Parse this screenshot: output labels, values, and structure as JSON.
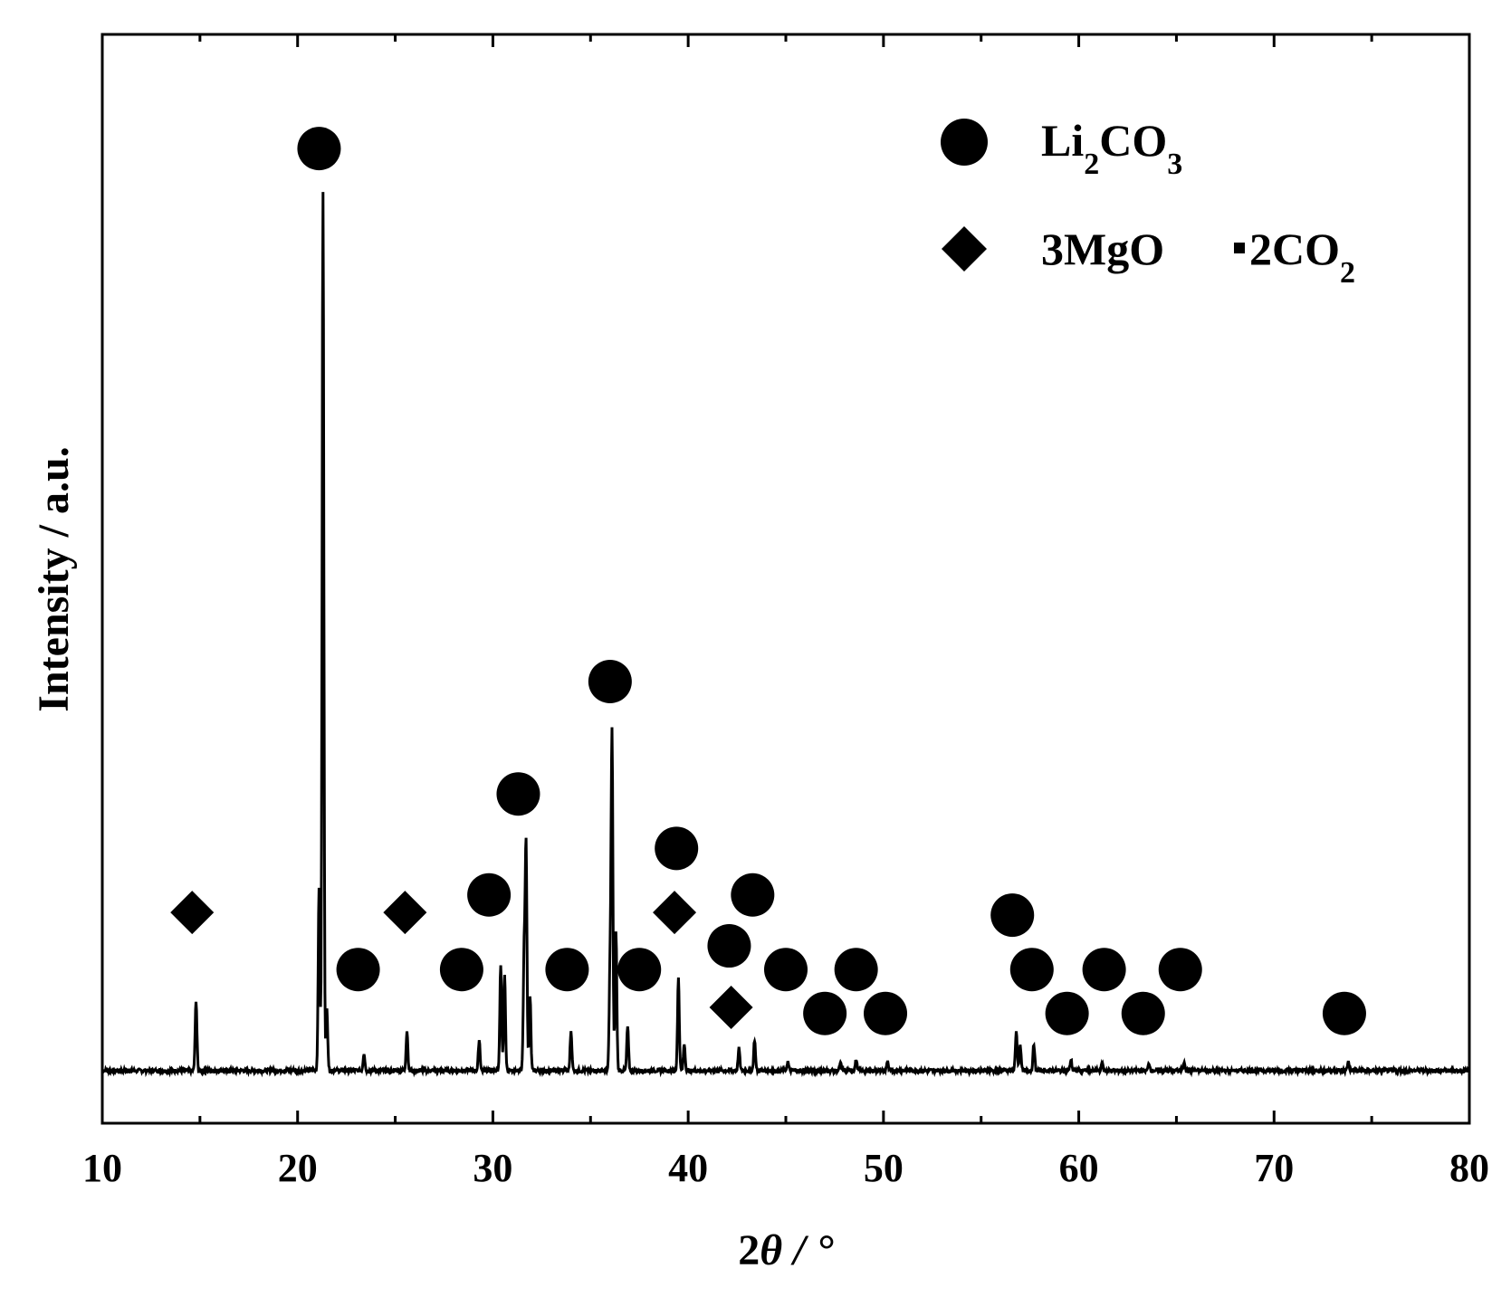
{
  "chart_data": {
    "type": "line",
    "xlabel_prefix": "2",
    "xlabel_theta": "θ",
    "xlabel_suffix": " / °",
    "ylabel": "Intensity / a.u.",
    "xlim": [
      10,
      80
    ],
    "ylim": [
      -0.06,
      1.18
    ],
    "xticks": [
      10,
      20,
      30,
      40,
      50,
      60,
      70,
      80
    ],
    "tick_labels": [
      "10",
      "20",
      "30",
      "40",
      "50",
      "60",
      "70",
      "80"
    ],
    "grid": false,
    "legend_position": "top-right",
    "legend": [
      {
        "marker": "circle",
        "parts": [
          "Li",
          "2",
          "CO",
          "3"
        ]
      },
      {
        "marker": "diamond",
        "parts": [
          "3MgO",
          "2CO",
          "2"
        ]
      }
    ],
    "baseline": 0,
    "peaks": [
      {
        "x": 14.8,
        "y": 0.08
      },
      {
        "x": 21.1,
        "y": 0.21
      },
      {
        "x": 21.3,
        "y": 1.0
      },
      {
        "x": 21.5,
        "y": 0.07
      },
      {
        "x": 23.4,
        "y": 0.02
      },
      {
        "x": 25.6,
        "y": 0.045
      },
      {
        "x": 29.3,
        "y": 0.035
      },
      {
        "x": 30.4,
        "y": 0.12
      },
      {
        "x": 30.6,
        "y": 0.11
      },
      {
        "x": 31.6,
        "y": 0.13
      },
      {
        "x": 31.7,
        "y": 0.255
      },
      {
        "x": 31.9,
        "y": 0.085
      },
      {
        "x": 34.0,
        "y": 0.045
      },
      {
        "x": 36.0,
        "y": 0.115
      },
      {
        "x": 36.1,
        "y": 0.38
      },
      {
        "x": 36.3,
        "y": 0.16
      },
      {
        "x": 36.9,
        "y": 0.05
      },
      {
        "x": 39.5,
        "y": 0.105
      },
      {
        "x": 39.8,
        "y": 0.03
      },
      {
        "x": 42.6,
        "y": 0.025
      },
      {
        "x": 43.4,
        "y": 0.035
      },
      {
        "x": 45.1,
        "y": 0.01
      },
      {
        "x": 47.8,
        "y": 0.008
      },
      {
        "x": 48.6,
        "y": 0.012
      },
      {
        "x": 50.2,
        "y": 0.01
      },
      {
        "x": 56.8,
        "y": 0.045
      },
      {
        "x": 57.0,
        "y": 0.03
      },
      {
        "x": 57.7,
        "y": 0.03
      },
      {
        "x": 59.6,
        "y": 0.012
      },
      {
        "x": 61.2,
        "y": 0.008
      },
      {
        "x": 63.6,
        "y": 0.008
      },
      {
        "x": 65.4,
        "y": 0.01
      },
      {
        "x": 73.8,
        "y": 0.01
      }
    ],
    "markers": [
      {
        "shape": "circle",
        "x": 21.1,
        "y": 1.05
      },
      {
        "shape": "circle",
        "x": 36.0,
        "y": 0.443
      },
      {
        "shape": "circle",
        "x": 31.3,
        "y": 0.315
      },
      {
        "shape": "circle",
        "x": 39.4,
        "y": 0.253
      },
      {
        "shape": "circle",
        "x": 29.8,
        "y": 0.2
      },
      {
        "shape": "circle",
        "x": 43.3,
        "y": 0.2
      },
      {
        "shape": "circle",
        "x": 56.6,
        "y": 0.177
      },
      {
        "shape": "circle",
        "x": 42.1,
        "y": 0.142
      },
      {
        "shape": "circle",
        "x": 23.1,
        "y": 0.115
      },
      {
        "shape": "circle",
        "x": 28.4,
        "y": 0.115
      },
      {
        "shape": "circle",
        "x": 33.8,
        "y": 0.115
      },
      {
        "shape": "circle",
        "x": 37.5,
        "y": 0.115
      },
      {
        "shape": "circle",
        "x": 45.0,
        "y": 0.115
      },
      {
        "shape": "circle",
        "x": 48.6,
        "y": 0.115
      },
      {
        "shape": "circle",
        "x": 57.6,
        "y": 0.115
      },
      {
        "shape": "circle",
        "x": 61.3,
        "y": 0.115
      },
      {
        "shape": "circle",
        "x": 65.2,
        "y": 0.115
      },
      {
        "shape": "circle",
        "x": 47.0,
        "y": 0.065
      },
      {
        "shape": "circle",
        "x": 50.1,
        "y": 0.065
      },
      {
        "shape": "circle",
        "x": 59.4,
        "y": 0.065
      },
      {
        "shape": "circle",
        "x": 63.3,
        "y": 0.065
      },
      {
        "shape": "circle",
        "x": 73.6,
        "y": 0.065
      },
      {
        "shape": "diamond",
        "x": 14.6,
        "y": 0.18
      },
      {
        "shape": "diamond",
        "x": 25.5,
        "y": 0.18
      },
      {
        "shape": "diamond",
        "x": 39.3,
        "y": 0.18
      },
      {
        "shape": "diamond",
        "x": 42.2,
        "y": 0.072
      }
    ]
  }
}
